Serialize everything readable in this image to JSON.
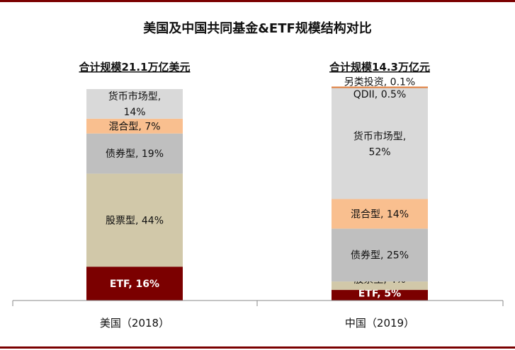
{
  "title": "美国及中国共同基金&ETF规模结构对比",
  "colors": {
    "rule": "#7a0000",
    "货币市场型": "#d9d9d9",
    "混合型": "#f9bf8f",
    "债券型": "#bfbfbf",
    "股票型": "#d1c8a9",
    "ETF": "#7b0000",
    "QDII": "#d9d9d9",
    "另类投资": "#e07b39"
  },
  "chart_data": {
    "type": "bar",
    "stacked": true,
    "normalized": true,
    "categories": [
      "美国（2018）",
      "中国（2019）"
    ],
    "totals": [
      "合计规模21.1万亿美元",
      "合计规模14.3万亿元"
    ],
    "series": [
      {
        "name": "ETF",
        "values": [
          16,
          5
        ],
        "labels": [
          "ETF, 16%",
          "ETF, 5%"
        ]
      },
      {
        "name": "股票型",
        "values": [
          44,
          4
        ],
        "labels": [
          "股票型, 44%",
          "股票型, 4%"
        ]
      },
      {
        "name": "债券型",
        "values": [
          19,
          25
        ],
        "labels": [
          "债券型, 19%",
          "债券型, 25%"
        ]
      },
      {
        "name": "混合型",
        "values": [
          7,
          14
        ],
        "labels": [
          "混合型, 7%",
          "混合型, 14%"
        ]
      },
      {
        "name": "货币市场型",
        "values": [
          14,
          52
        ],
        "labels": [
          "货币市场型,\n14%",
          "货币市场型,\n52%"
        ]
      },
      {
        "name": "QDII",
        "values": [
          0,
          0.5
        ],
        "labels": [
          "",
          "QDII, 0.5%"
        ]
      },
      {
        "name": "另类投资",
        "values": [
          0,
          0.1
        ],
        "labels": [
          "",
          "另类投资, 0.1%"
        ]
      }
    ],
    "ylim": [
      0,
      100
    ],
    "grid": false,
    "legend": "none"
  }
}
